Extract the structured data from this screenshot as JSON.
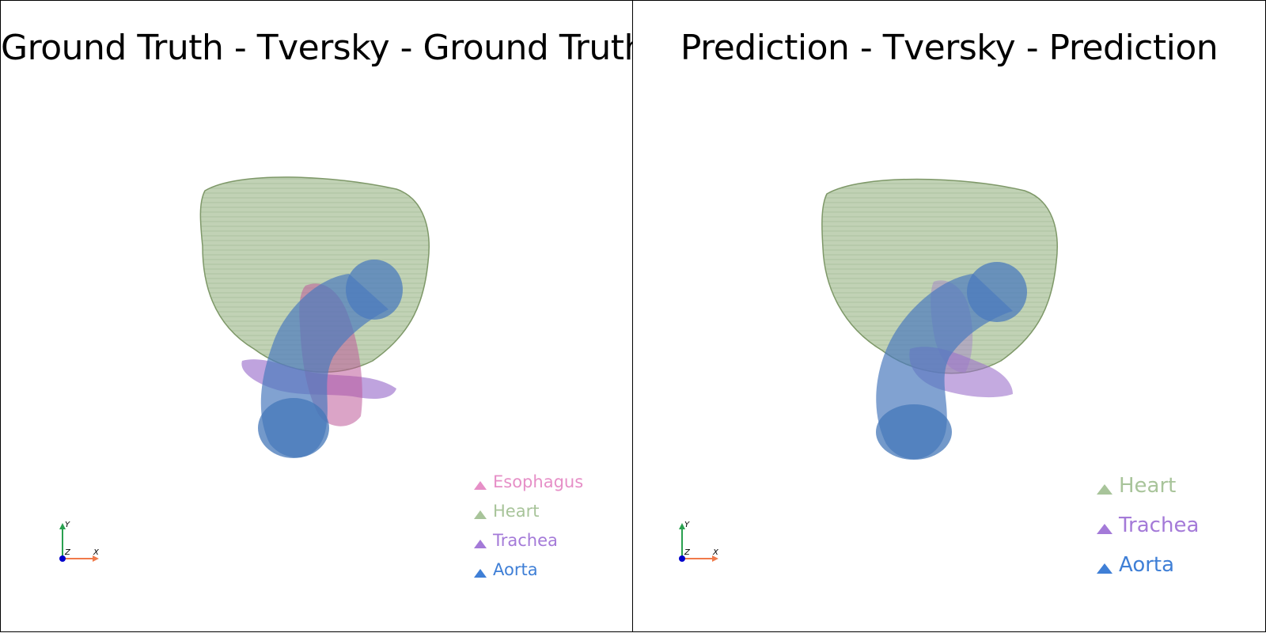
{
  "panels": [
    {
      "title": "Ground Truth - Tversky - Ground Truth",
      "legend": [
        {
          "label": "Esophagus",
          "color": "#e68fc7"
        },
        {
          "label": "Heart",
          "color": "#a8c49a"
        },
        {
          "label": "Trachea",
          "color": "#a47ad8"
        },
        {
          "label": "Aorta",
          "color": "#3f7fd6"
        }
      ],
      "axes": {
        "x": "X",
        "y": "Y",
        "z": "Z"
      }
    },
    {
      "title": "Prediction - Tversky - Prediction",
      "legend": [
        {
          "label": "Heart",
          "color": "#a8c49a"
        },
        {
          "label": "Trachea",
          "color": "#a47ad8"
        },
        {
          "label": "Aorta",
          "color": "#3f7fd6"
        }
      ],
      "axes": {
        "x": "X",
        "y": "Y",
        "z": "Z"
      }
    }
  ],
  "colors": {
    "heart": "#9fb98a",
    "aorta": "#4a78b8",
    "trachea": "#9a6cc8",
    "esophagus": "#c05a98",
    "axis_x": "#f07a4a",
    "axis_y": "#2aa050",
    "axis_z": "#0000cc"
  }
}
